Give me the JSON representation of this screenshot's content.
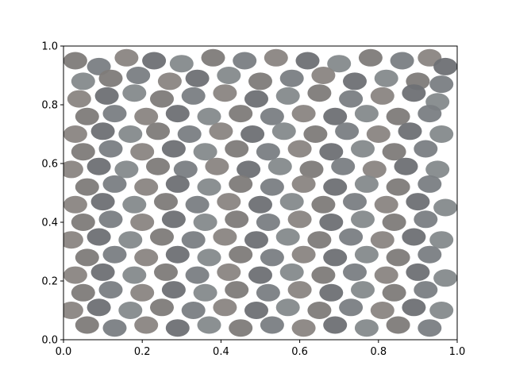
{
  "chart_data": {
    "type": "scatter",
    "title": "",
    "xlabel": "",
    "ylabel": "",
    "xlim": [
      0,
      1
    ],
    "ylim": [
      0,
      1
    ],
    "grid": false,
    "marker_shape": "ellipse",
    "marker_alpha": 0.95,
    "palette": [
      "#7e7b79",
      "#6f6c6b",
      "#8a8582",
      "#76716d",
      "#858a8c",
      "#6b6764",
      "#8f8a85",
      "#7a7e83",
      "#837a72",
      "#6e7074",
      "#948f8a",
      "#7d756f"
    ],
    "xticks": [
      {
        "value": 0.0,
        "label": "0.0"
      },
      {
        "value": 0.2,
        "label": "0.2"
      },
      {
        "value": 0.4,
        "label": "0.4"
      },
      {
        "value": 0.6,
        "label": "0.6"
      },
      {
        "value": 0.8,
        "label": "0.8"
      },
      {
        "value": 1.0,
        "label": "1.0"
      }
    ],
    "yticks": [
      {
        "value": 0.0,
        "label": "0.0"
      },
      {
        "value": 0.2,
        "label": "0.2"
      },
      {
        "value": 0.4,
        "label": "0.4"
      },
      {
        "value": 0.6,
        "label": "0.6"
      },
      {
        "value": 0.8,
        "label": "0.8"
      },
      {
        "value": 1.0,
        "label": "1.0"
      }
    ],
    "points": [
      {
        "x": 0.03,
        "y": 0.95
      },
      {
        "x": 0.09,
        "y": 0.93
      },
      {
        "x": 0.16,
        "y": 0.96
      },
      {
        "x": 0.23,
        "y": 0.95
      },
      {
        "x": 0.3,
        "y": 0.94
      },
      {
        "x": 0.38,
        "y": 0.96
      },
      {
        "x": 0.46,
        "y": 0.95
      },
      {
        "x": 0.54,
        "y": 0.96
      },
      {
        "x": 0.62,
        "y": 0.95
      },
      {
        "x": 0.7,
        "y": 0.94
      },
      {
        "x": 0.78,
        "y": 0.96
      },
      {
        "x": 0.86,
        "y": 0.95
      },
      {
        "x": 0.93,
        "y": 0.96
      },
      {
        "x": 0.97,
        "y": 0.93
      },
      {
        "x": 0.05,
        "y": 0.88
      },
      {
        "x": 0.12,
        "y": 0.89
      },
      {
        "x": 0.19,
        "y": 0.9
      },
      {
        "x": 0.27,
        "y": 0.88
      },
      {
        "x": 0.34,
        "y": 0.89
      },
      {
        "x": 0.42,
        "y": 0.9
      },
      {
        "x": 0.5,
        "y": 0.88
      },
      {
        "x": 0.58,
        "y": 0.89
      },
      {
        "x": 0.66,
        "y": 0.9
      },
      {
        "x": 0.74,
        "y": 0.88
      },
      {
        "x": 0.82,
        "y": 0.89
      },
      {
        "x": 0.9,
        "y": 0.88
      },
      {
        "x": 0.96,
        "y": 0.87
      },
      {
        "x": 0.04,
        "y": 0.82
      },
      {
        "x": 0.11,
        "y": 0.83
      },
      {
        "x": 0.18,
        "y": 0.84
      },
      {
        "x": 0.25,
        "y": 0.82
      },
      {
        "x": 0.33,
        "y": 0.83
      },
      {
        "x": 0.41,
        "y": 0.84
      },
      {
        "x": 0.49,
        "y": 0.82
      },
      {
        "x": 0.57,
        "y": 0.83
      },
      {
        "x": 0.65,
        "y": 0.84
      },
      {
        "x": 0.73,
        "y": 0.82
      },
      {
        "x": 0.81,
        "y": 0.83
      },
      {
        "x": 0.89,
        "y": 0.84
      },
      {
        "x": 0.95,
        "y": 0.81
      },
      {
        "x": 0.06,
        "y": 0.76
      },
      {
        "x": 0.13,
        "y": 0.77
      },
      {
        "x": 0.21,
        "y": 0.76
      },
      {
        "x": 0.29,
        "y": 0.77
      },
      {
        "x": 0.37,
        "y": 0.76
      },
      {
        "x": 0.45,
        "y": 0.77
      },
      {
        "x": 0.53,
        "y": 0.76
      },
      {
        "x": 0.61,
        "y": 0.77
      },
      {
        "x": 0.69,
        "y": 0.76
      },
      {
        "x": 0.77,
        "y": 0.77
      },
      {
        "x": 0.85,
        "y": 0.76
      },
      {
        "x": 0.93,
        "y": 0.77
      },
      {
        "x": 0.03,
        "y": 0.7
      },
      {
        "x": 0.1,
        "y": 0.71
      },
      {
        "x": 0.17,
        "y": 0.7
      },
      {
        "x": 0.24,
        "y": 0.71
      },
      {
        "x": 0.32,
        "y": 0.7
      },
      {
        "x": 0.4,
        "y": 0.71
      },
      {
        "x": 0.48,
        "y": 0.7
      },
      {
        "x": 0.56,
        "y": 0.71
      },
      {
        "x": 0.64,
        "y": 0.7
      },
      {
        "x": 0.72,
        "y": 0.71
      },
      {
        "x": 0.8,
        "y": 0.7
      },
      {
        "x": 0.88,
        "y": 0.71
      },
      {
        "x": 0.96,
        "y": 0.7
      },
      {
        "x": 0.05,
        "y": 0.64
      },
      {
        "x": 0.12,
        "y": 0.65
      },
      {
        "x": 0.2,
        "y": 0.64
      },
      {
        "x": 0.28,
        "y": 0.65
      },
      {
        "x": 0.36,
        "y": 0.64
      },
      {
        "x": 0.44,
        "y": 0.65
      },
      {
        "x": 0.52,
        "y": 0.64
      },
      {
        "x": 0.6,
        "y": 0.65
      },
      {
        "x": 0.68,
        "y": 0.64
      },
      {
        "x": 0.76,
        "y": 0.65
      },
      {
        "x": 0.84,
        "y": 0.64
      },
      {
        "x": 0.92,
        "y": 0.65
      },
      {
        "x": 0.02,
        "y": 0.58
      },
      {
        "x": 0.09,
        "y": 0.59
      },
      {
        "x": 0.16,
        "y": 0.58
      },
      {
        "x": 0.24,
        "y": 0.59
      },
      {
        "x": 0.31,
        "y": 0.58
      },
      {
        "x": 0.39,
        "y": 0.59
      },
      {
        "x": 0.47,
        "y": 0.58
      },
      {
        "x": 0.55,
        "y": 0.59
      },
      {
        "x": 0.63,
        "y": 0.58
      },
      {
        "x": 0.71,
        "y": 0.59
      },
      {
        "x": 0.79,
        "y": 0.58
      },
      {
        "x": 0.87,
        "y": 0.59
      },
      {
        "x": 0.95,
        "y": 0.58
      },
      {
        "x": 0.06,
        "y": 0.52
      },
      {
        "x": 0.13,
        "y": 0.53
      },
      {
        "x": 0.21,
        "y": 0.52
      },
      {
        "x": 0.29,
        "y": 0.53
      },
      {
        "x": 0.37,
        "y": 0.52
      },
      {
        "x": 0.45,
        "y": 0.53
      },
      {
        "x": 0.53,
        "y": 0.52
      },
      {
        "x": 0.61,
        "y": 0.53
      },
      {
        "x": 0.69,
        "y": 0.52
      },
      {
        "x": 0.77,
        "y": 0.53
      },
      {
        "x": 0.85,
        "y": 0.52
      },
      {
        "x": 0.93,
        "y": 0.53
      },
      {
        "x": 0.03,
        "y": 0.46
      },
      {
        "x": 0.1,
        "y": 0.47
      },
      {
        "x": 0.18,
        "y": 0.46
      },
      {
        "x": 0.26,
        "y": 0.47
      },
      {
        "x": 0.34,
        "y": 0.46
      },
      {
        "x": 0.42,
        "y": 0.47
      },
      {
        "x": 0.5,
        "y": 0.46
      },
      {
        "x": 0.58,
        "y": 0.47
      },
      {
        "x": 0.66,
        "y": 0.46
      },
      {
        "x": 0.74,
        "y": 0.47
      },
      {
        "x": 0.82,
        "y": 0.46
      },
      {
        "x": 0.9,
        "y": 0.47
      },
      {
        "x": 0.97,
        "y": 0.45
      },
      {
        "x": 0.05,
        "y": 0.4
      },
      {
        "x": 0.12,
        "y": 0.41
      },
      {
        "x": 0.2,
        "y": 0.4
      },
      {
        "x": 0.28,
        "y": 0.41
      },
      {
        "x": 0.36,
        "y": 0.4
      },
      {
        "x": 0.44,
        "y": 0.41
      },
      {
        "x": 0.52,
        "y": 0.4
      },
      {
        "x": 0.6,
        "y": 0.41
      },
      {
        "x": 0.68,
        "y": 0.4
      },
      {
        "x": 0.76,
        "y": 0.41
      },
      {
        "x": 0.84,
        "y": 0.4
      },
      {
        "x": 0.92,
        "y": 0.41
      },
      {
        "x": 0.02,
        "y": 0.34
      },
      {
        "x": 0.09,
        "y": 0.35
      },
      {
        "x": 0.17,
        "y": 0.34
      },
      {
        "x": 0.25,
        "y": 0.35
      },
      {
        "x": 0.33,
        "y": 0.34
      },
      {
        "x": 0.41,
        "y": 0.35
      },
      {
        "x": 0.49,
        "y": 0.34
      },
      {
        "x": 0.57,
        "y": 0.35
      },
      {
        "x": 0.65,
        "y": 0.34
      },
      {
        "x": 0.73,
        "y": 0.35
      },
      {
        "x": 0.81,
        "y": 0.34
      },
      {
        "x": 0.89,
        "y": 0.35
      },
      {
        "x": 0.96,
        "y": 0.34
      },
      {
        "x": 0.06,
        "y": 0.28
      },
      {
        "x": 0.13,
        "y": 0.29
      },
      {
        "x": 0.21,
        "y": 0.28
      },
      {
        "x": 0.29,
        "y": 0.29
      },
      {
        "x": 0.37,
        "y": 0.28
      },
      {
        "x": 0.45,
        "y": 0.29
      },
      {
        "x": 0.53,
        "y": 0.28
      },
      {
        "x": 0.61,
        "y": 0.29
      },
      {
        "x": 0.69,
        "y": 0.28
      },
      {
        "x": 0.77,
        "y": 0.29
      },
      {
        "x": 0.85,
        "y": 0.28
      },
      {
        "x": 0.93,
        "y": 0.29
      },
      {
        "x": 0.03,
        "y": 0.22
      },
      {
        "x": 0.1,
        "y": 0.23
      },
      {
        "x": 0.18,
        "y": 0.22
      },
      {
        "x": 0.26,
        "y": 0.23
      },
      {
        "x": 0.34,
        "y": 0.22
      },
      {
        "x": 0.42,
        "y": 0.23
      },
      {
        "x": 0.5,
        "y": 0.22
      },
      {
        "x": 0.58,
        "y": 0.23
      },
      {
        "x": 0.66,
        "y": 0.22
      },
      {
        "x": 0.74,
        "y": 0.23
      },
      {
        "x": 0.82,
        "y": 0.22
      },
      {
        "x": 0.9,
        "y": 0.23
      },
      {
        "x": 0.97,
        "y": 0.21
      },
      {
        "x": 0.05,
        "y": 0.16
      },
      {
        "x": 0.12,
        "y": 0.17
      },
      {
        "x": 0.2,
        "y": 0.16
      },
      {
        "x": 0.28,
        "y": 0.17
      },
      {
        "x": 0.36,
        "y": 0.16
      },
      {
        "x": 0.44,
        "y": 0.17
      },
      {
        "x": 0.52,
        "y": 0.16
      },
      {
        "x": 0.6,
        "y": 0.17
      },
      {
        "x": 0.68,
        "y": 0.16
      },
      {
        "x": 0.76,
        "y": 0.17
      },
      {
        "x": 0.84,
        "y": 0.16
      },
      {
        "x": 0.92,
        "y": 0.17
      },
      {
        "x": 0.02,
        "y": 0.1
      },
      {
        "x": 0.09,
        "y": 0.11
      },
      {
        "x": 0.17,
        "y": 0.1
      },
      {
        "x": 0.25,
        "y": 0.11
      },
      {
        "x": 0.33,
        "y": 0.1
      },
      {
        "x": 0.41,
        "y": 0.11
      },
      {
        "x": 0.49,
        "y": 0.1
      },
      {
        "x": 0.57,
        "y": 0.11
      },
      {
        "x": 0.65,
        "y": 0.1
      },
      {
        "x": 0.73,
        "y": 0.11
      },
      {
        "x": 0.81,
        "y": 0.1
      },
      {
        "x": 0.89,
        "y": 0.11
      },
      {
        "x": 0.96,
        "y": 0.1
      },
      {
        "x": 0.06,
        "y": 0.05
      },
      {
        "x": 0.13,
        "y": 0.04
      },
      {
        "x": 0.21,
        "y": 0.05
      },
      {
        "x": 0.29,
        "y": 0.04
      },
      {
        "x": 0.37,
        "y": 0.05
      },
      {
        "x": 0.45,
        "y": 0.04
      },
      {
        "x": 0.53,
        "y": 0.05
      },
      {
        "x": 0.61,
        "y": 0.04
      },
      {
        "x": 0.69,
        "y": 0.05
      },
      {
        "x": 0.77,
        "y": 0.04
      },
      {
        "x": 0.85,
        "y": 0.05
      },
      {
        "x": 0.93,
        "y": 0.04
      }
    ]
  }
}
